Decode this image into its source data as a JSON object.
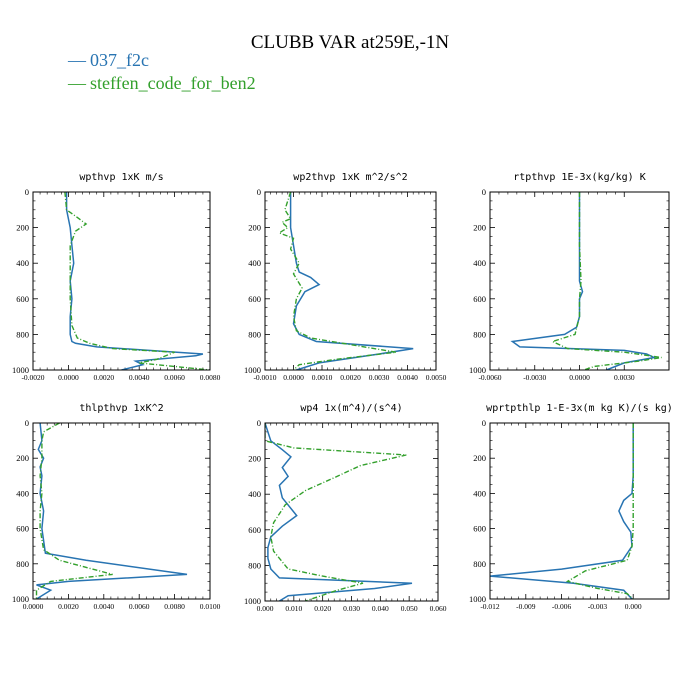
{
  "figure": {
    "title": "CLUBB VAR at259E,-1N",
    "legend": [
      {
        "label": "037_f2c",
        "color": "#2874b2"
      },
      {
        "label": "steffen_code_for_ben2",
        "color": "#33a02c"
      }
    ]
  },
  "chart_data": [
    {
      "type": "line",
      "title": "wpthvp  1xK m/s",
      "xlim": [
        -0.002,
        0.008
      ],
      "ylim": [
        0,
        1000
      ],
      "y_inverted": true,
      "xticks": [
        "-0.0020",
        "0.0000",
        "0.0020",
        "0.0040",
        "0.0060",
        "0.0080"
      ],
      "yticks": [
        "0",
        "200",
        "400",
        "600",
        "800",
        "1000"
      ],
      "series": [
        {
          "name": "037_f2c",
          "x": [
            -0.0001,
            -0.0001,
            0.0001,
            0.0002,
            0.0003,
            0.0001,
            0.0002,
            0.0001,
            0.0001,
            0.0002,
            0.0004,
            0.0016,
            0.0076,
            0.0072,
            0.0038,
            0.0042,
            0.003
          ],
          "y": [
            0,
            100,
            200,
            300,
            400,
            500,
            600,
            700,
            800,
            840,
            850,
            870,
            910,
            920,
            950,
            970,
            1000
          ]
        },
        {
          "name": "steffen_code_for_ben2",
          "x": [
            -0.0002,
            -0.0001,
            0.0006,
            0.001,
            0.0004,
            0.0001,
            0.0001,
            0.0001,
            0.0002,
            0.0005,
            0.0012,
            0.0025,
            0.006,
            0.005,
            0.004,
            0.008
          ],
          "y": [
            0,
            100,
            150,
            180,
            220,
            300,
            400,
            600,
            750,
            820,
            850,
            880,
            900,
            940,
            960,
            1000
          ]
        }
      ]
    },
    {
      "type": "line",
      "title": "wp2thvp  1xK m^2/s^2",
      "xlim": [
        -0.001,
        0.005
      ],
      "ylim": [
        0,
        1000
      ],
      "y_inverted": true,
      "xticks": [
        "-0.0010",
        "0.0000",
        "0.0010",
        "0.0020",
        "0.0030",
        "0.0040",
        "0.0050"
      ],
      "yticks": [
        "0",
        "200",
        "400",
        "600",
        "800",
        "1000"
      ],
      "series": [
        {
          "name": "037_f2c",
          "x": [
            -0.0001,
            -0.0001,
            0.0,
            0.0001,
            0.0002,
            0.0006,
            0.0009,
            0.0004,
            0.0001,
            0.0,
            0.0002,
            0.0008,
            0.0042,
            0.003,
            0.0009,
            0.0001
          ],
          "y": [
            0,
            200,
            300,
            400,
            450,
            480,
            520,
            560,
            640,
            740,
            800,
            840,
            880,
            910,
            960,
            1000
          ]
        },
        {
          "name": "steffen_code_for_ben2",
          "x": [
            -0.0001,
            -0.0003,
            -0.0001,
            -0.0004,
            -0.0002,
            -0.0005,
            0.0,
            -0.0001,
            0.0002,
            0.0,
            0.0003,
            0.0001,
            0.0,
            0.0001,
            0.0006,
            0.0021,
            0.0036,
            0.0015,
            0.0002,
            0.0
          ],
          "y": [
            0,
            100,
            150,
            170,
            200,
            230,
            260,
            320,
            400,
            460,
            540,
            600,
            700,
            780,
            820,
            860,
            900,
            940,
            970,
            1000
          ]
        }
      ]
    },
    {
      "type": "line",
      "title": "rtpthvp  1E-3x(kg/kg) K",
      "xlim": [
        -0.006,
        0.006
      ],
      "ylim": [
        0,
        1000
      ],
      "y_inverted": true,
      "xticks": [
        "-0.0060",
        "-0.0030",
        "0.0000",
        "0.0030"
      ],
      "yticks": [
        "0",
        "200",
        "400",
        "600",
        "800",
        "1000"
      ],
      "series": [
        {
          "name": "037_f2c",
          "x": [
            0.0,
            0.0,
            0.0,
            0.0002,
            0.0,
            0.0,
            -0.0002,
            -0.001,
            -0.0045,
            -0.004,
            0.003,
            0.0045,
            0.005,
            0.003,
            0.0018
          ],
          "y": [
            0,
            300,
            500,
            560,
            600,
            700,
            760,
            800,
            840,
            870,
            890,
            910,
            930,
            960,
            1000
          ]
        },
        {
          "name": "steffen_code_for_ben2",
          "x": [
            0.0,
            0.0,
            0.0001,
            0.0,
            0.0,
            -0.0003,
            -0.0018,
            -0.0008,
            0.003,
            0.0055,
            0.004,
            0.001,
            0.0003
          ],
          "y": [
            0,
            300,
            500,
            600,
            700,
            800,
            840,
            880,
            900,
            930,
            950,
            980,
            1000
          ]
        }
      ]
    },
    {
      "type": "line",
      "title": "thlpthvp  1xK^2",
      "xlim": [
        0.0,
        0.01
      ],
      "ylim": [
        0,
        1000
      ],
      "y_inverted": true,
      "xticks": [
        "0.0000",
        "0.0020",
        "0.0040",
        "0.0060",
        "0.0080",
        "0.0100"
      ],
      "yticks": [
        "0",
        "200",
        "400",
        "600",
        "800",
        "1000"
      ],
      "series": [
        {
          "name": "037_f2c",
          "x": [
            0.0004,
            0.0005,
            0.0003,
            0.0006,
            0.0004,
            0.0005,
            0.0004,
            0.0006,
            0.0005,
            0.0007,
            0.003,
            0.0087,
            0.002,
            0.0002,
            0.001,
            0.0002
          ],
          "y": [
            0,
            100,
            150,
            200,
            250,
            300,
            400,
            500,
            600,
            740,
            780,
            860,
            900,
            920,
            950,
            1000
          ]
        },
        {
          "name": "steffen_code_for_ben2",
          "x": [
            0.0015,
            0.0006,
            0.0005,
            0.0005,
            0.0004,
            0.0005,
            0.0004,
            0.0004,
            0.0006,
            0.0015,
            0.0045,
            0.001,
            0.0002,
            0.0002
          ],
          "y": [
            0,
            50,
            100,
            200,
            300,
            400,
            500,
            600,
            720,
            780,
            860,
            900,
            950,
            1000
          ]
        }
      ]
    },
    {
      "type": "line",
      "title": "wp4  1x(m^4)/(s^4)",
      "xlim": [
        0.0,
        0.06
      ],
      "ylim": [
        0,
        1000
      ],
      "y_inverted": true,
      "xticks": [
        "0.000",
        "0.010",
        "0.020",
        "0.030",
        "0.040",
        "0.050",
        "0.060"
      ],
      "yticks": [
        "0",
        "200",
        "400",
        "600",
        "800",
        "1000"
      ],
      "series": [
        {
          "name": "037_f2c",
          "x": [
            0.0,
            0.002,
            0.006,
            0.009,
            0.006,
            0.008,
            0.005,
            0.006,
            0.011,
            0.006,
            0.002,
            0.001,
            0.001,
            0.002,
            0.005,
            0.051,
            0.038,
            0.008,
            0.005
          ],
          "y": [
            0,
            100,
            150,
            190,
            250,
            300,
            350,
            420,
            520,
            580,
            640,
            700,
            760,
            820,
            870,
            900,
            930,
            970,
            1000
          ]
        },
        {
          "name": "steffen_code_for_ben2",
          "x": [
            0.0,
            0.0,
            0.01,
            0.049,
            0.033,
            0.025,
            0.014,
            0.007,
            0.003,
            0.002,
            0.003,
            0.008,
            0.02,
            0.034,
            0.025,
            0.014
          ],
          "y": [
            0,
            100,
            140,
            180,
            240,
            300,
            380,
            460,
            560,
            640,
            720,
            820,
            860,
            900,
            940,
            1000
          ]
        }
      ]
    },
    {
      "type": "line",
      "title": "wprtpthlp  1-E-3x(m kg K)/(s kg)",
      "xlim": [
        -0.012,
        0.003
      ],
      "ylim": [
        0,
        1000
      ],
      "y_inverted": true,
      "xticks": [
        "-0.012",
        "-0.009",
        "-0.006",
        "-0.003",
        "0.000"
      ],
      "yticks": [
        "0",
        "200",
        "400",
        "600",
        "800",
        "1000"
      ],
      "series": [
        {
          "name": "037_f2c",
          "x": [
            0.0,
            0.0,
            -0.0001,
            -0.0008,
            -0.0012,
            -0.0008,
            -0.0002,
            -0.0001,
            -0.0009,
            -0.006,
            -0.012,
            -0.005,
            -0.0008,
            -0.0001
          ],
          "y": [
            0,
            300,
            400,
            440,
            500,
            560,
            620,
            700,
            780,
            830,
            870,
            910,
            950,
            1000
          ]
        },
        {
          "name": "steffen_code_for_ben2",
          "x": [
            0.0,
            0.0,
            0.0,
            0.0,
            -0.0001,
            -0.0005,
            -0.004,
            -0.0055,
            -0.003,
            -0.0005,
            0.0
          ],
          "y": [
            0,
            300,
            500,
            600,
            700,
            780,
            840,
            900,
            940,
            970,
            1000
          ]
        }
      ]
    }
  ]
}
